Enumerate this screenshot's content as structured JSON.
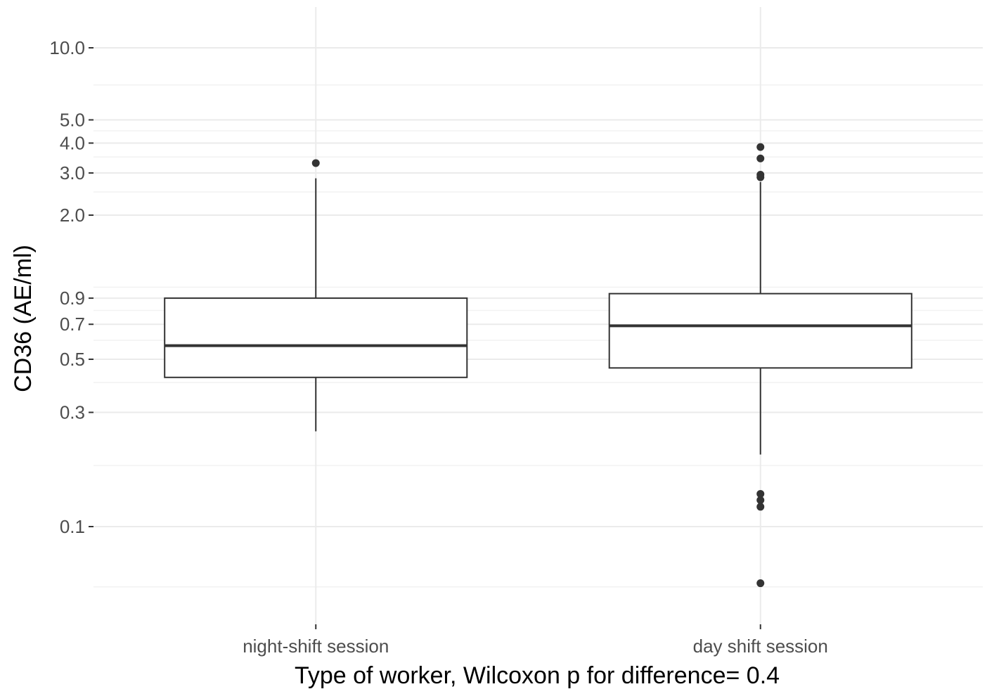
{
  "chart_data": {
    "type": "box",
    "title": "",
    "xlabel": "Type of worker, Wilcoxon p for difference= 0.4",
    "ylabel": "CD36 (AE/ml)",
    "y_scale": "log10",
    "ylim": [
      0.055,
      13
    ],
    "y_ticks": [
      0.1,
      0.3,
      0.5,
      0.7,
      0.9,
      2.0,
      3.0,
      4.0,
      5.0,
      10.0
    ],
    "y_tick_labels": [
      "0.1",
      "0.3",
      "0.5",
      "0.7",
      "0.9",
      "2.0",
      "3.0",
      "4.0",
      "5.0",
      "10.0"
    ],
    "y_minor_gridlines": [
      0.056,
      0.18,
      0.4,
      0.6,
      0.8,
      1.0,
      2.5,
      3.5,
      4.5,
      7.0
    ],
    "grid": true,
    "categories": [
      "night-shift session",
      "day shift session"
    ],
    "boxes": [
      {
        "category": "night-shift session",
        "whisker_low": 0.25,
        "q1": 0.42,
        "median": 0.57,
        "q3": 0.9,
        "whisker_high": 2.85,
        "outliers": [
          3.3
        ]
      },
      {
        "category": "day shift session",
        "whisker_low": 0.2,
        "q1": 0.46,
        "median": 0.69,
        "q3": 0.94,
        "whisker_high": 2.75,
        "outliers": [
          3.85,
          3.45,
          2.95,
          2.88,
          0.137,
          0.129,
          0.121,
          0.058
        ]
      }
    ]
  }
}
